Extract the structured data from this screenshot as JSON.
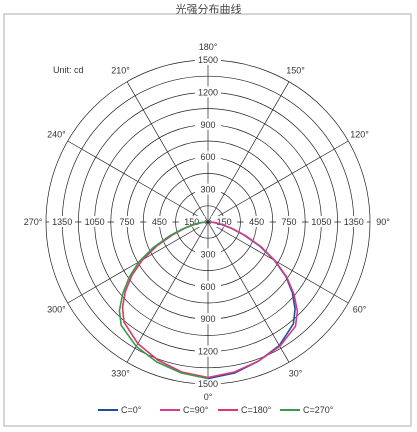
{
  "title": "光强分布曲线",
  "unit_label": "Unit: cd",
  "chart_data": {
    "type": "polar",
    "title": "光强分布曲线",
    "unit": "Unit: cd",
    "rlim": [
      0,
      1500
    ],
    "ring_values": [
      150,
      300,
      450,
      600,
      750,
      900,
      1050,
      1200,
      1350,
      1500
    ],
    "vertical_tick_labels_top": [
      "1500",
      "1200",
      "900",
      "600",
      "300"
    ],
    "vertical_tick_labels_bottom": [
      "300",
      "600",
      "900",
      "1200",
      "1500"
    ],
    "horizontal_tick_labels_left": [
      "1350",
      "1050",
      "750",
      "450",
      "150"
    ],
    "horizontal_tick_labels_right": [
      "150",
      "450",
      "750",
      "1050",
      "1350"
    ],
    "angle_labels": [
      {
        "angle": 0,
        "label": "0°"
      },
      {
        "angle": 30,
        "label": "30°"
      },
      {
        "angle": 60,
        "label": "60°"
      },
      {
        "angle": 90,
        "label": "90°"
      },
      {
        "angle": 120,
        "label": "120°"
      },
      {
        "angle": 150,
        "label": "150°"
      },
      {
        "angle": 180,
        "label": "180°"
      },
      {
        "angle": 210,
        "label": "210°"
      },
      {
        "angle": 240,
        "label": "240°"
      },
      {
        "angle": 270,
        "label": "270°"
      },
      {
        "angle": 300,
        "label": "300°"
      },
      {
        "angle": 330,
        "label": "330°"
      }
    ],
    "angles": [
      0,
      10,
      20,
      30,
      40,
      45,
      50,
      55,
      60,
      65,
      70,
      75,
      80,
      85,
      90
    ],
    "series": [
      {
        "name": "C=0°",
        "color": "#1f4e9c",
        "side": "right",
        "values": [
          1450,
          1420,
          1370,
          1320,
          1230,
          1140,
          1020,
          880,
          710,
          530,
          360,
          220,
          120,
          60,
          20
        ]
      },
      {
        "name": "C=90°",
        "color": "#d63c8c",
        "side": "right",
        "values": [
          1440,
          1410,
          1370,
          1330,
          1260,
          1170,
          1040,
          890,
          720,
          540,
          370,
          230,
          130,
          70,
          25
        ]
      },
      {
        "name": "C=180°",
        "color": "#e0356a",
        "side": "left",
        "values": [
          1440,
          1410,
          1360,
          1300,
          1210,
          1120,
          1000,
          860,
          700,
          520,
          350,
          220,
          120,
          60,
          20
        ]
      },
      {
        "name": "C=270°",
        "color": "#3a9a50",
        "side": "left",
        "values": [
          1450,
          1420,
          1380,
          1330,
          1250,
          1160,
          1030,
          890,
          740,
          560,
          380,
          240,
          140,
          70,
          25
        ]
      }
    ],
    "legend": [
      {
        "label": "C=0°",
        "color": "#1f4e9c"
      },
      {
        "label": "C=90°",
        "color": "#d63c8c"
      },
      {
        "label": "C=180°",
        "color": "#e0356a"
      },
      {
        "label": "C=270°",
        "color": "#3a9a50"
      }
    ]
  }
}
